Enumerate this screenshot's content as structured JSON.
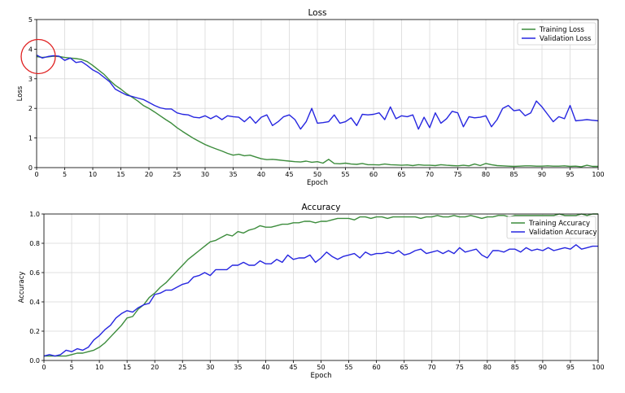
{
  "chart_data": [
    {
      "type": "line",
      "title": "Loss",
      "xlabel": "Epoch",
      "ylabel": "Loss",
      "xlim": [
        0,
        100
      ],
      "ylim": [
        0,
        5
      ],
      "xticks": [
        0,
        5,
        10,
        15,
        20,
        25,
        30,
        35,
        40,
        45,
        50,
        55,
        60,
        65,
        70,
        75,
        80,
        85,
        90,
        95,
        100
      ],
      "yticks": [
        0,
        1,
        2,
        3,
        4,
        5
      ],
      "grid": true,
      "legend_position": "top-right",
      "annotation": "red circle at epoch 0, loss ≈ 3.75",
      "series": [
        {
          "name": "Training Loss",
          "color": "#3c8c3c",
          "x": [
            0,
            1,
            2,
            3,
            4,
            5,
            6,
            7,
            8,
            9,
            10,
            11,
            12,
            13,
            14,
            15,
            16,
            17,
            18,
            19,
            20,
            21,
            22,
            23,
            24,
            25,
            26,
            27,
            28,
            29,
            30,
            31,
            32,
            33,
            34,
            35,
            36,
            37,
            38,
            39,
            40,
            41,
            42,
            43,
            44,
            45,
            46,
            47,
            48,
            49,
            50,
            51,
            52,
            53,
            54,
            55,
            56,
            57,
            58,
            59,
            60,
            61,
            62,
            63,
            64,
            65,
            66,
            67,
            68,
            69,
            70,
            71,
            72,
            73,
            74,
            75,
            76,
            77,
            78,
            79,
            80,
            81,
            82,
            83,
            84,
            85,
            86,
            87,
            88,
            89,
            90,
            91,
            92,
            93,
            94,
            95,
            96,
            97,
            98,
            99,
            100
          ],
          "values": [
            3.75,
            3.72,
            3.74,
            3.76,
            3.75,
            3.72,
            3.7,
            3.68,
            3.65,
            3.58,
            3.45,
            3.3,
            3.15,
            2.95,
            2.78,
            2.65,
            2.5,
            2.38,
            2.25,
            2.1,
            2.0,
            1.88,
            1.75,
            1.62,
            1.5,
            1.35,
            1.22,
            1.1,
            0.98,
            0.88,
            0.78,
            0.7,
            0.63,
            0.56,
            0.48,
            0.42,
            0.45,
            0.4,
            0.42,
            0.36,
            0.3,
            0.27,
            0.28,
            0.26,
            0.24,
            0.22,
            0.2,
            0.19,
            0.22,
            0.18,
            0.2,
            0.15,
            0.28,
            0.14,
            0.13,
            0.15,
            0.12,
            0.11,
            0.14,
            0.1,
            0.1,
            0.09,
            0.12,
            0.1,
            0.09,
            0.08,
            0.09,
            0.07,
            0.1,
            0.08,
            0.08,
            0.07,
            0.1,
            0.08,
            0.07,
            0.06,
            0.08,
            0.06,
            0.12,
            0.07,
            0.14,
            0.1,
            0.07,
            0.06,
            0.05,
            0.04,
            0.05,
            0.06,
            0.06,
            0.05,
            0.05,
            0.06,
            0.05,
            0.05,
            0.06,
            0.04,
            0.05,
            0.03,
            0.08,
            0.04,
            0.04
          ]
        },
        {
          "name": "Validation Loss",
          "color": "#2626e0",
          "x": [
            0,
            1,
            2,
            3,
            4,
            5,
            6,
            7,
            8,
            9,
            10,
            11,
            12,
            13,
            14,
            15,
            16,
            17,
            18,
            19,
            20,
            21,
            22,
            23,
            24,
            25,
            26,
            27,
            28,
            29,
            30,
            31,
            32,
            33,
            34,
            35,
            36,
            37,
            38,
            39,
            40,
            41,
            42,
            43,
            44,
            45,
            46,
            47,
            48,
            49,
            50,
            51,
            52,
            53,
            54,
            55,
            56,
            57,
            58,
            59,
            60,
            61,
            62,
            63,
            64,
            65,
            66,
            67,
            68,
            69,
            70,
            71,
            72,
            73,
            74,
            75,
            76,
            77,
            78,
            79,
            80,
            81,
            82,
            83,
            84,
            85,
            86,
            87,
            88,
            89,
            90,
            91,
            92,
            93,
            94,
            95,
            96,
            97,
            98,
            99,
            100
          ],
          "values": [
            3.8,
            3.7,
            3.75,
            3.78,
            3.76,
            3.62,
            3.7,
            3.55,
            3.58,
            3.45,
            3.3,
            3.2,
            3.05,
            2.9,
            2.65,
            2.55,
            2.45,
            2.4,
            2.35,
            2.3,
            2.2,
            2.1,
            2.02,
            1.98,
            1.98,
            1.85,
            1.8,
            1.78,
            1.7,
            1.68,
            1.75,
            1.65,
            1.75,
            1.62,
            1.75,
            1.72,
            1.7,
            1.55,
            1.72,
            1.5,
            1.7,
            1.78,
            1.42,
            1.55,
            1.72,
            1.78,
            1.62,
            1.3,
            1.55,
            2.0,
            1.5,
            1.52,
            1.55,
            1.78,
            1.5,
            1.55,
            1.68,
            1.42,
            1.8,
            1.78,
            1.8,
            1.85,
            1.62,
            2.05,
            1.65,
            1.75,
            1.72,
            1.78,
            1.3,
            1.7,
            1.35,
            1.85,
            1.5,
            1.65,
            1.9,
            1.85,
            1.38,
            1.72,
            1.68,
            1.7,
            1.75,
            1.38,
            1.62,
            2.0,
            2.1,
            1.92,
            1.95,
            1.75,
            1.85,
            2.25,
            2.05,
            1.8,
            1.55,
            1.72,
            1.65,
            2.1,
            1.58,
            1.6,
            1.62,
            1.6,
            1.58
          ]
        }
      ]
    },
    {
      "type": "line",
      "title": "Accuracy",
      "xlabel": "Epoch",
      "ylabel": "Accuracy",
      "xlim": [
        0,
        100
      ],
      "ylim": [
        0,
        1.0
      ],
      "xticks": [
        0,
        5,
        10,
        15,
        20,
        25,
        30,
        35,
        40,
        45,
        50,
        55,
        60,
        65,
        70,
        75,
        80,
        85,
        90,
        95,
        100
      ],
      "yticks": [
        0.0,
        0.2,
        0.4,
        0.6,
        0.8,
        1.0
      ],
      "ytick_labels": [
        "0.0",
        "0.2",
        "0.4",
        "0.6",
        "0.8",
        "1.0"
      ],
      "grid": true,
      "legend_position": "right",
      "series": [
        {
          "name": "Training Accuracy",
          "color": "#3c8c3c",
          "x": [
            0,
            1,
            2,
            3,
            4,
            5,
            6,
            7,
            8,
            9,
            10,
            11,
            12,
            13,
            14,
            15,
            16,
            17,
            18,
            19,
            20,
            21,
            22,
            23,
            24,
            25,
            26,
            27,
            28,
            29,
            30,
            31,
            32,
            33,
            34,
            35,
            36,
            37,
            38,
            39,
            40,
            41,
            42,
            43,
            44,
            45,
            46,
            47,
            48,
            49,
            50,
            51,
            52,
            53,
            54,
            55,
            56,
            57,
            58,
            59,
            60,
            61,
            62,
            63,
            64,
            65,
            66,
            67,
            68,
            69,
            70,
            71,
            72,
            73,
            74,
            75,
            76,
            77,
            78,
            79,
            80,
            81,
            82,
            83,
            84,
            85,
            86,
            87,
            88,
            89,
            90,
            91,
            92,
            93,
            94,
            95,
            96,
            97,
            98,
            99,
            100
          ],
          "values": [
            0.03,
            0.03,
            0.03,
            0.03,
            0.03,
            0.04,
            0.05,
            0.05,
            0.06,
            0.07,
            0.09,
            0.12,
            0.16,
            0.2,
            0.24,
            0.29,
            0.3,
            0.35,
            0.38,
            0.43,
            0.46,
            0.5,
            0.53,
            0.57,
            0.61,
            0.65,
            0.69,
            0.72,
            0.75,
            0.78,
            0.81,
            0.82,
            0.84,
            0.86,
            0.85,
            0.88,
            0.87,
            0.89,
            0.9,
            0.92,
            0.91,
            0.91,
            0.92,
            0.93,
            0.93,
            0.94,
            0.94,
            0.95,
            0.95,
            0.94,
            0.95,
            0.95,
            0.96,
            0.97,
            0.97,
            0.97,
            0.96,
            0.98,
            0.98,
            0.97,
            0.98,
            0.98,
            0.97,
            0.98,
            0.98,
            0.98,
            0.98,
            0.98,
            0.97,
            0.98,
            0.98,
            0.99,
            0.98,
            0.98,
            0.99,
            0.98,
            0.98,
            0.99,
            0.98,
            0.97,
            0.98,
            0.98,
            0.99,
            0.99,
            0.98,
            0.99,
            0.99,
            0.99,
            0.99,
            0.99,
            0.99,
            0.99,
            0.99,
            1.0,
            0.99,
            0.99,
            0.99,
            1.0,
            0.99,
            1.0,
            1.0
          ]
        },
        {
          "name": "Validation Accuracy",
          "color": "#2626e0",
          "x": [
            0,
            1,
            2,
            3,
            4,
            5,
            6,
            7,
            8,
            9,
            10,
            11,
            12,
            13,
            14,
            15,
            16,
            17,
            18,
            19,
            20,
            21,
            22,
            23,
            24,
            25,
            26,
            27,
            28,
            29,
            30,
            31,
            32,
            33,
            34,
            35,
            36,
            37,
            38,
            39,
            40,
            41,
            42,
            43,
            44,
            45,
            46,
            47,
            48,
            49,
            50,
            51,
            52,
            53,
            54,
            55,
            56,
            57,
            58,
            59,
            60,
            61,
            62,
            63,
            64,
            65,
            66,
            67,
            68,
            69,
            70,
            71,
            72,
            73,
            74,
            75,
            76,
            77,
            78,
            79,
            80,
            81,
            82,
            83,
            84,
            85,
            86,
            87,
            88,
            89,
            90,
            91,
            92,
            93,
            94,
            95,
            96,
            97,
            98,
            99,
            100
          ],
          "values": [
            0.03,
            0.04,
            0.03,
            0.04,
            0.07,
            0.06,
            0.08,
            0.07,
            0.09,
            0.14,
            0.17,
            0.21,
            0.24,
            0.29,
            0.32,
            0.34,
            0.33,
            0.36,
            0.38,
            0.39,
            0.45,
            0.46,
            0.48,
            0.48,
            0.5,
            0.52,
            0.53,
            0.57,
            0.58,
            0.6,
            0.58,
            0.62,
            0.62,
            0.62,
            0.65,
            0.65,
            0.67,
            0.65,
            0.65,
            0.68,
            0.66,
            0.66,
            0.69,
            0.67,
            0.72,
            0.69,
            0.7,
            0.7,
            0.72,
            0.67,
            0.7,
            0.74,
            0.71,
            0.69,
            0.71,
            0.72,
            0.73,
            0.7,
            0.74,
            0.72,
            0.73,
            0.73,
            0.74,
            0.73,
            0.75,
            0.72,
            0.73,
            0.75,
            0.76,
            0.73,
            0.74,
            0.75,
            0.73,
            0.75,
            0.73,
            0.77,
            0.74,
            0.75,
            0.76,
            0.72,
            0.7,
            0.75,
            0.75,
            0.74,
            0.76,
            0.76,
            0.74,
            0.77,
            0.75,
            0.76,
            0.75,
            0.77,
            0.75,
            0.76,
            0.77,
            0.76,
            0.79,
            0.76,
            0.77,
            0.78,
            0.78
          ]
        }
      ]
    }
  ]
}
